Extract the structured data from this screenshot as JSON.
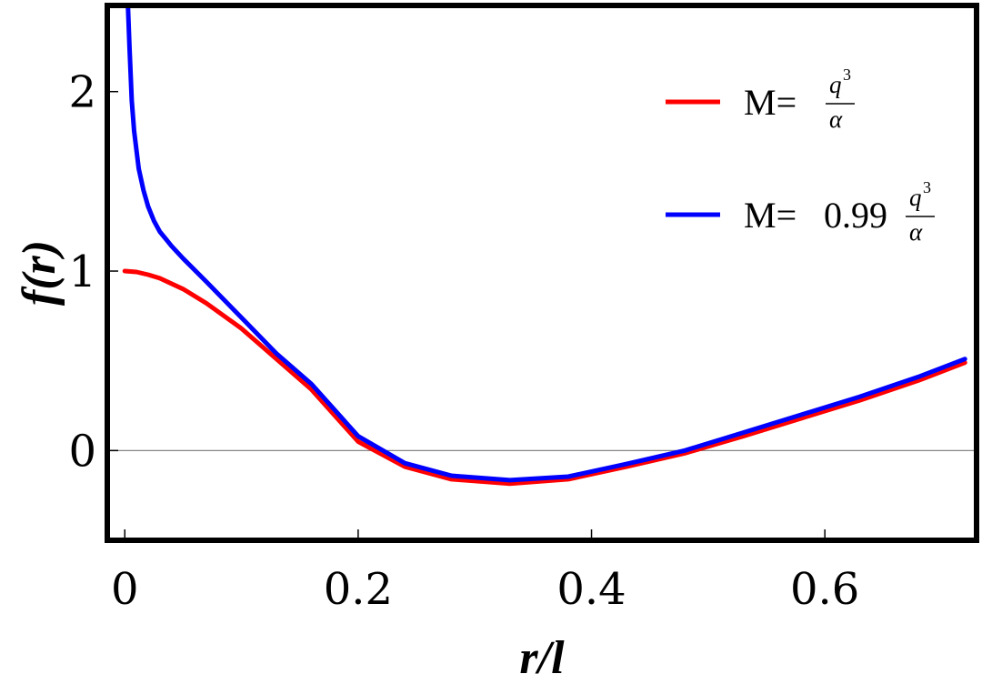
{
  "chart_data": {
    "type": "line",
    "title": "",
    "xlabel": "r/l",
    "ylabel": "f(r)",
    "xlim": [
      -0.015,
      0.73
    ],
    "ylim": [
      -0.5,
      2.48
    ],
    "xticks": [
      {
        "value": 0,
        "label": "0"
      },
      {
        "value": 0.2,
        "label": "0.2"
      },
      {
        "value": 0.4,
        "label": "0.4"
      },
      {
        "value": 0.6,
        "label": "0.6"
      }
    ],
    "yticks": [
      {
        "value": 0,
        "label": "0"
      },
      {
        "value": 1,
        "label": "1"
      },
      {
        "value": 2,
        "label": "2"
      }
    ],
    "zero_line": true,
    "grid": false,
    "legend_position": "top-right",
    "series": [
      {
        "name": "M= q³/α",
        "legend": {
          "prefix": "M=",
          "coef": "",
          "num": "q",
          "sup": "3",
          "den": "α"
        },
        "color": "#ff0000",
        "x": [
          0,
          0.01,
          0.02,
          0.03,
          0.05,
          0.07,
          0.1,
          0.13,
          0.16,
          0.2,
          0.24,
          0.28,
          0.33,
          0.38,
          0.43,
          0.48,
          0.53,
          0.58,
          0.63,
          0.68,
          0.72
        ],
        "y": [
          1.0,
          0.995,
          0.98,
          0.96,
          0.9,
          0.82,
          0.68,
          0.51,
          0.34,
          0.05,
          -0.09,
          -0.16,
          -0.185,
          -0.16,
          -0.09,
          -0.015,
          0.08,
          0.18,
          0.28,
          0.39,
          0.49
        ]
      },
      {
        "name": "M= 0.99 q³/α",
        "legend": {
          "prefix": "M=",
          "coef": "0.99",
          "num": "q",
          "sup": "3",
          "den": "α"
        },
        "color": "#0000ff",
        "x": [
          0.002,
          0.004,
          0.006,
          0.008,
          0.012,
          0.016,
          0.02,
          0.025,
          0.03,
          0.035,
          0.04,
          0.05,
          0.07,
          0.1,
          0.13,
          0.16,
          0.2,
          0.24,
          0.28,
          0.33,
          0.38,
          0.43,
          0.48,
          0.53,
          0.58,
          0.63,
          0.68,
          0.72
        ],
        "y": [
          2.6,
          2.25,
          1.95,
          1.78,
          1.57,
          1.45,
          1.36,
          1.28,
          1.22,
          1.18,
          1.14,
          1.07,
          0.94,
          0.74,
          0.54,
          0.37,
          0.08,
          -0.07,
          -0.14,
          -0.165,
          -0.145,
          -0.075,
          0.0,
          0.1,
          0.2,
          0.3,
          0.41,
          0.51
        ]
      }
    ]
  }
}
